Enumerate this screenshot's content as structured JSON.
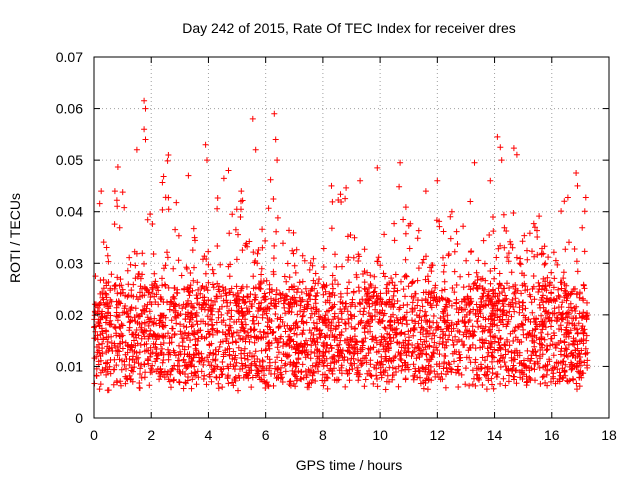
{
  "chart_data": {
    "type": "scatter",
    "title": "Day 242 of 2015, Rate Of TEC Index for receiver dres",
    "xlabel": "GPS time / hours",
    "ylabel": "ROTI / TECUs",
    "xlim": [
      0,
      18
    ],
    "ylim": [
      0,
      0.07
    ],
    "x_ticks": [
      0,
      2,
      4,
      6,
      8,
      10,
      12,
      14,
      16,
      18
    ],
    "x_tick_labels": [
      "0",
      "2",
      "4",
      "6",
      "8",
      "10",
      "12",
      "14",
      "16",
      "18"
    ],
    "y_ticks": [
      0,
      0.01,
      0.02,
      0.03,
      0.04,
      0.05,
      0.06,
      0.07
    ],
    "y_tick_labels": [
      "0",
      "0.01",
      "0.02",
      "0.03",
      "0.04",
      "0.05",
      "0.06",
      "0.07"
    ],
    "grid": true,
    "marker": "plus",
    "color": "#ff0000",
    "time_range_hours": [
      0,
      17.25
    ],
    "baseline_band": [
      0.007,
      0.025
    ],
    "notable_peaks": [
      {
        "x": 0.25,
        "y": 0.044
      },
      {
        "x": 1.5,
        "y": 0.052
      },
      {
        "x": 1.75,
        "y": 0.0615
      },
      {
        "x": 1.8,
        "y": 0.06
      },
      {
        "x": 1.75,
        "y": 0.056
      },
      {
        "x": 1.8,
        "y": 0.054
      },
      {
        "x": 2.6,
        "y": 0.051
      },
      {
        "x": 3.3,
        "y": 0.047
      },
      {
        "x": 3.9,
        "y": 0.053
      },
      {
        "x": 3.95,
        "y": 0.05
      },
      {
        "x": 4.7,
        "y": 0.048
      },
      {
        "x": 5.15,
        "y": 0.044
      },
      {
        "x": 5.55,
        "y": 0.058
      },
      {
        "x": 5.65,
        "y": 0.052
      },
      {
        "x": 6.3,
        "y": 0.059
      },
      {
        "x": 6.35,
        "y": 0.054
      },
      {
        "x": 6.4,
        "y": 0.05
      },
      {
        "x": 8.3,
        "y": 0.045
      },
      {
        "x": 9.3,
        "y": 0.046
      },
      {
        "x": 9.9,
        "y": 0.0485
      },
      {
        "x": 10.7,
        "y": 0.0495
      },
      {
        "x": 11.6,
        "y": 0.044
      },
      {
        "x": 12.0,
        "y": 0.046
      },
      {
        "x": 13.3,
        "y": 0.0495
      },
      {
        "x": 13.85,
        "y": 0.046
      },
      {
        "x": 14.1,
        "y": 0.0545
      },
      {
        "x": 14.2,
        "y": 0.0525
      },
      {
        "x": 14.25,
        "y": 0.05
      },
      {
        "x": 16.85,
        "y": 0.0475
      },
      {
        "x": 16.9,
        "y": 0.045
      }
    ]
  }
}
